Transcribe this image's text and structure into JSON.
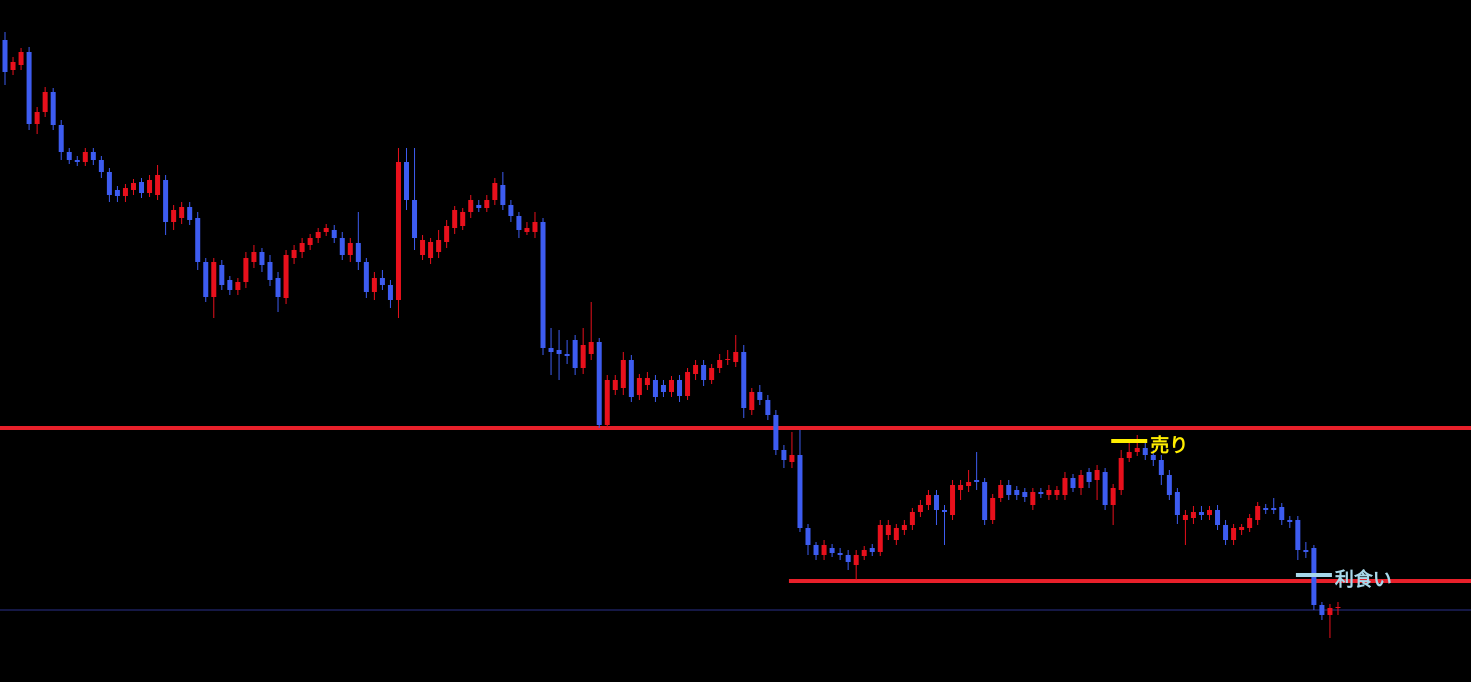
{
  "chart_data": {
    "type": "candlestick",
    "ylim": [
      18,
      700
    ],
    "up_color": "#e8101c",
    "down_color": "#3d5cf0",
    "candles": [
      [
        660,
        668,
        615,
        628
      ],
      [
        630,
        643,
        625,
        638
      ],
      [
        635,
        652,
        630,
        648
      ],
      [
        648,
        653,
        570,
        576
      ],
      [
        576,
        593,
        566,
        588
      ],
      [
        588,
        613,
        583,
        608
      ],
      [
        608,
        612,
        570,
        575
      ],
      [
        575,
        580,
        540,
        548
      ],
      [
        548,
        552,
        536,
        540
      ],
      [
        540,
        544,
        534,
        538
      ],
      [
        538,
        552,
        534,
        548
      ],
      [
        548,
        552,
        535,
        540
      ],
      [
        540,
        544,
        522,
        528
      ],
      [
        528,
        532,
        498,
        505
      ],
      [
        510,
        514,
        498,
        504
      ],
      [
        504,
        516,
        498,
        512
      ],
      [
        510,
        521,
        505,
        517
      ],
      [
        518,
        522,
        502,
        507
      ],
      [
        507,
        525,
        503,
        520
      ],
      [
        505,
        535,
        500,
        525
      ],
      [
        520,
        525,
        465,
        478
      ],
      [
        478,
        495,
        470,
        490
      ],
      [
        482,
        498,
        476,
        493
      ],
      [
        493,
        498,
        475,
        480
      ],
      [
        482,
        488,
        430,
        438
      ],
      [
        438,
        442,
        398,
        403
      ],
      [
        403,
        442,
        382,
        438
      ],
      [
        435,
        440,
        410,
        415
      ],
      [
        420,
        424,
        405,
        410
      ],
      [
        410,
        422,
        405,
        418
      ],
      [
        418,
        448,
        412,
        442
      ],
      [
        438,
        455,
        432,
        448
      ],
      [
        448,
        452,
        428,
        435
      ],
      [
        438,
        445,
        414,
        420
      ],
      [
        422,
        428,
        388,
        403
      ],
      [
        402,
        450,
        396,
        445
      ],
      [
        442,
        455,
        436,
        450
      ],
      [
        448,
        462,
        442,
        457
      ],
      [
        455,
        466,
        450,
        462
      ],
      [
        462,
        472,
        457,
        468
      ],
      [
        468,
        476,
        464,
        472
      ],
      [
        470,
        475,
        457,
        462
      ],
      [
        462,
        468,
        440,
        445
      ],
      [
        445,
        462,
        438,
        457
      ],
      [
        457,
        488,
        430,
        438
      ],
      [
        438,
        442,
        402,
        408
      ],
      [
        408,
        428,
        400,
        422
      ],
      [
        422,
        430,
        410,
        415
      ],
      [
        415,
        420,
        392,
        400
      ],
      [
        400,
        552,
        382,
        538
      ],
      [
        538,
        552,
        490,
        500
      ],
      [
        500,
        552,
        450,
        462
      ],
      [
        445,
        465,
        440,
        460
      ],
      [
        442,
        462,
        436,
        458
      ],
      [
        448,
        470,
        442,
        460
      ],
      [
        458,
        480,
        452,
        474
      ],
      [
        472,
        494,
        466,
        490
      ],
      [
        474,
        492,
        470,
        488
      ],
      [
        488,
        505,
        482,
        500
      ],
      [
        495,
        500,
        488,
        492
      ],
      [
        492,
        505,
        488,
        500
      ],
      [
        500,
        522,
        495,
        517
      ],
      [
        515,
        528,
        490,
        495
      ],
      [
        495,
        500,
        478,
        484
      ],
      [
        484,
        488,
        462,
        470
      ],
      [
        468,
        478,
        465,
        472
      ],
      [
        468,
        488,
        462,
        478
      ],
      [
        478,
        482,
        345,
        352
      ],
      [
        352,
        372,
        325,
        348
      ],
      [
        350,
        370,
        320,
        346
      ],
      [
        346,
        360,
        336,
        344
      ],
      [
        360,
        365,
        325,
        332
      ],
      [
        332,
        372,
        326,
        355
      ],
      [
        346,
        398,
        340,
        358
      ],
      [
        358,
        362,
        272,
        275
      ],
      [
        275,
        325,
        272,
        320
      ],
      [
        310,
        325,
        305,
        320
      ],
      [
        312,
        348,
        305,
        340
      ],
      [
        340,
        345,
        298,
        303
      ],
      [
        305,
        326,
        300,
        322
      ],
      [
        315,
        328,
        310,
        322
      ],
      [
        320,
        325,
        298,
        303
      ],
      [
        315,
        320,
        303,
        308
      ],
      [
        308,
        324,
        303,
        320
      ],
      [
        320,
        325,
        298,
        304
      ],
      [
        304,
        332,
        300,
        328
      ],
      [
        326,
        340,
        320,
        335
      ],
      [
        335,
        340,
        314,
        320
      ],
      [
        320,
        336,
        316,
        332
      ],
      [
        332,
        346,
        327,
        340
      ],
      [
        340,
        350,
        335,
        341
      ],
      [
        338,
        365,
        333,
        348
      ],
      [
        348,
        355,
        282,
        292
      ],
      [
        290,
        312,
        285,
        308
      ],
      [
        308,
        315,
        295,
        300
      ],
      [
        300,
        305,
        280,
        285
      ],
      [
        285,
        290,
        245,
        250
      ],
      [
        250,
        255,
        232,
        240
      ],
      [
        238,
        268,
        232,
        245
      ],
      [
        245,
        270,
        168,
        172
      ],
      [
        172,
        176,
        145,
        155
      ],
      [
        155,
        158,
        140,
        145
      ],
      [
        145,
        160,
        140,
        155
      ],
      [
        152,
        156,
        143,
        147
      ],
      [
        147,
        152,
        140,
        145
      ],
      [
        145,
        150,
        130,
        138
      ],
      [
        135,
        150,
        120,
        145
      ],
      [
        144,
        154,
        140,
        150
      ],
      [
        152,
        156,
        144,
        148
      ],
      [
        148,
        180,
        144,
        175
      ],
      [
        165,
        180,
        160,
        175
      ],
      [
        160,
        176,
        155,
        172
      ],
      [
        170,
        180,
        165,
        175
      ],
      [
        175,
        192,
        170,
        188
      ],
      [
        188,
        200,
        183,
        195
      ],
      [
        195,
        210,
        190,
        205
      ],
      [
        205,
        210,
        175,
        190
      ],
      [
        190,
        195,
        155,
        188
      ],
      [
        185,
        220,
        180,
        215
      ],
      [
        210,
        220,
        200,
        215
      ],
      [
        214,
        230,
        208,
        218
      ],
      [
        220,
        248,
        210,
        218
      ],
      [
        218,
        222,
        175,
        180
      ],
      [
        180,
        206,
        176,
        202
      ],
      [
        202,
        220,
        198,
        215
      ],
      [
        215,
        220,
        200,
        205
      ],
      [
        210,
        214,
        200,
        205
      ],
      [
        208,
        212,
        198,
        203
      ],
      [
        195,
        212,
        190,
        208
      ],
      [
        208,
        212,
        202,
        206
      ],
      [
        205,
        215,
        200,
        210
      ],
      [
        205,
        214,
        200,
        210
      ],
      [
        205,
        228,
        200,
        222
      ],
      [
        222,
        226,
        208,
        212
      ],
      [
        212,
        230,
        205,
        225
      ],
      [
        228,
        232,
        212,
        218
      ],
      [
        220,
        235,
        200,
        230
      ],
      [
        228,
        232,
        190,
        195
      ],
      [
        195,
        216,
        175,
        212
      ],
      [
        210,
        250,
        205,
        242
      ],
      [
        242,
        258,
        238,
        248
      ],
      [
        248,
        265,
        244,
        252
      ],
      [
        252,
        258,
        240,
        245
      ],
      [
        245,
        250,
        234,
        240
      ],
      [
        240,
        245,
        215,
        225
      ],
      [
        225,
        230,
        200,
        205
      ],
      [
        208,
        212,
        176,
        185
      ],
      [
        180,
        190,
        155,
        185
      ],
      [
        182,
        194,
        176,
        188
      ],
      [
        188,
        194,
        180,
        185
      ],
      [
        185,
        194,
        180,
        190
      ],
      [
        190,
        195,
        170,
        175
      ],
      [
        175,
        180,
        155,
        160
      ],
      [
        160,
        176,
        155,
        172
      ],
      [
        170,
        176,
        165,
        173
      ],
      [
        172,
        186,
        168,
        182
      ],
      [
        180,
        198,
        175,
        194
      ],
      [
        192,
        196,
        186,
        190
      ],
      [
        192,
        202,
        186,
        190
      ],
      [
        193,
        197,
        175,
        180
      ],
      [
        180,
        184,
        172,
        178
      ],
      [
        180,
        184,
        140,
        150
      ],
      [
        150,
        158,
        142,
        148
      ],
      [
        152,
        155,
        90,
        95
      ],
      [
        95,
        98,
        80,
        85
      ],
      [
        85,
        96,
        62,
        92
      ],
      [
        92,
        98,
        85,
        93
      ]
    ],
    "lines": [
      {
        "value": 272,
        "color": "#e8202a",
        "from": 0
      },
      {
        "value": 119,
        "color": "#e8202a",
        "from": 98
      },
      {
        "value": 90,
        "color": "#2a2f8a",
        "from": 0
      }
    ],
    "annotations": [
      {
        "text": "売り",
        "value": 259,
        "index": 141,
        "color": "#ffee00"
      },
      {
        "text": "利食い",
        "value": 125,
        "index": 164,
        "color": "#a8d8ea"
      }
    ]
  }
}
